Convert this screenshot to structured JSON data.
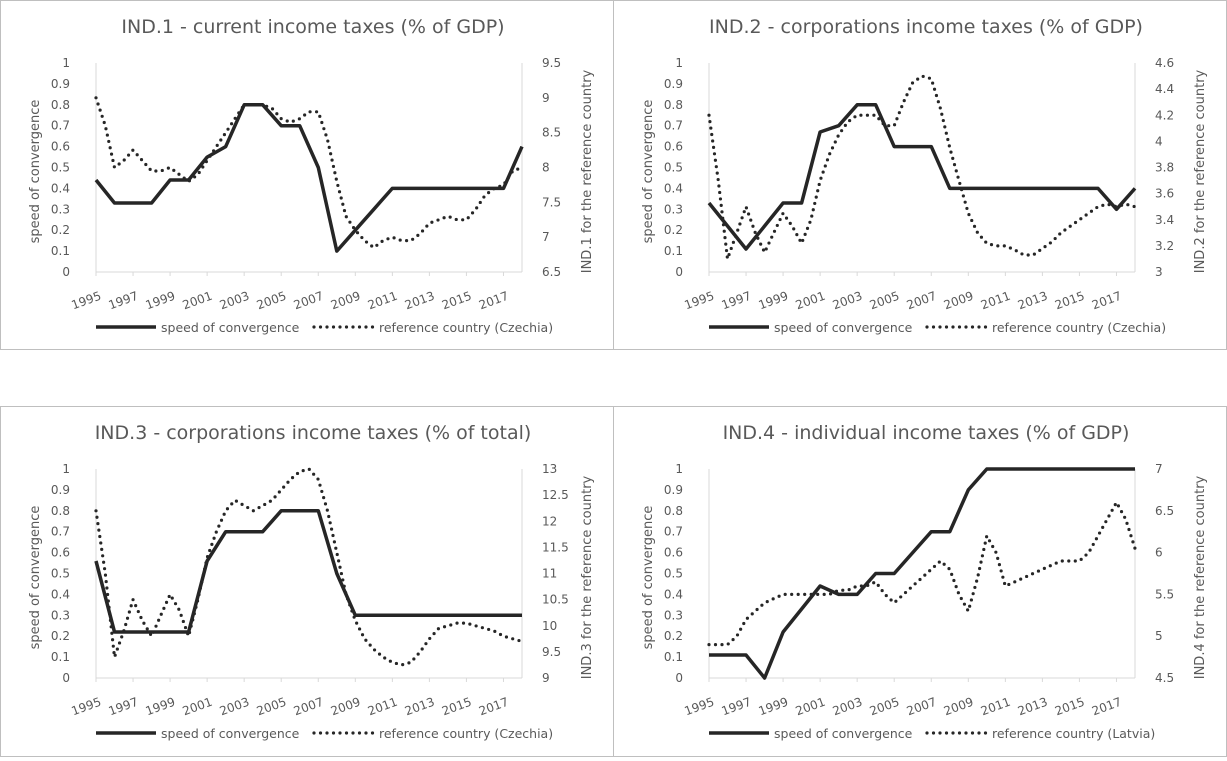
{
  "colors": {
    "series": "#262626",
    "text": "#595959",
    "title": "#595959",
    "grid": "#d9d9d9",
    "border": "#bfbfbf"
  },
  "chart_data": [
    {
      "type": "line",
      "title": "IND.1 - current income taxes (% of GDP)",
      "ylabel": "speed of convergence",
      "y2label": "IND.1 for the reference country",
      "x_ticks": [
        "1995",
        "1997",
        "1999",
        "2001",
        "2003",
        "2005",
        "2007",
        "2009",
        "2011",
        "2013",
        "2015",
        "2017"
      ],
      "x_range": [
        1995,
        2018
      ],
      "ylim": [
        0,
        1
      ],
      "y_ticks": [
        "0",
        "0.1",
        "0.2",
        "0.3",
        "0.4",
        "0.5",
        "0.6",
        "0.7",
        "0.8",
        "0.9",
        "1"
      ],
      "y2lim": [
        6.5,
        9.5
      ],
      "y2_ticks": [
        "6.5",
        "7",
        "7.5",
        "8",
        "8.5",
        "9",
        "9.5"
      ],
      "legend": [
        "speed of convergence",
        "reference country (Czechia)"
      ],
      "series": [
        {
          "name": "speed of convergence",
          "axis": "left",
          "style": "solid",
          "x": [
            1995,
            1996,
            1997,
            1998,
            1999,
            2000,
            2001,
            2002,
            2003,
            2004,
            2005,
            2006,
            2007,
            2008,
            2009,
            2010,
            2011,
            2012,
            2013,
            2014,
            2015,
            2016,
            2017,
            2018
          ],
          "values": [
            0.44,
            0.33,
            0.33,
            0.33,
            0.44,
            0.44,
            0.55,
            0.6,
            0.8,
            0.8,
            0.7,
            0.7,
            0.5,
            0.1,
            0.2,
            0.3,
            0.4,
            0.4,
            0.4,
            0.4,
            0.4,
            0.4,
            0.4,
            0.6
          ]
        },
        {
          "name": "reference country (Czechia)",
          "axis": "right",
          "style": "dotted",
          "x": [
            1995,
            1995.5,
            1996,
            1996.5,
            1997,
            1997.5,
            1998,
            1998.5,
            1999,
            1999.5,
            2000,
            2000.5,
            2001,
            2001.5,
            2002,
            2002.5,
            2003,
            2003.5,
            2004,
            2004.5,
            2005,
            2005.5,
            2006,
            2006.5,
            2007,
            2007.5,
            2008,
            2008.5,
            2009,
            2009.5,
            2010,
            2010.5,
            2011,
            2011.5,
            2012,
            2012.5,
            2013,
            2013.5,
            2014,
            2014.5,
            2015,
            2015.5,
            2016,
            2016.5,
            2017,
            2017.5,
            2018
          ],
          "values": [
            9.0,
            8.6,
            8.0,
            8.1,
            8.25,
            8.1,
            7.95,
            7.95,
            8.0,
            7.9,
            7.8,
            7.9,
            8.1,
            8.3,
            8.5,
            8.7,
            8.9,
            8.9,
            8.9,
            8.85,
            8.7,
            8.65,
            8.7,
            8.8,
            8.8,
            8.4,
            7.8,
            7.3,
            7.1,
            6.95,
            6.85,
            6.95,
            7.0,
            6.95,
            6.95,
            7.05,
            7.2,
            7.25,
            7.3,
            7.25,
            7.25,
            7.4,
            7.6,
            7.7,
            7.75,
            7.95,
            8.0
          ]
        }
      ]
    },
    {
      "type": "line",
      "title": "IND.2 - corporations income taxes (% of GDP)",
      "ylabel": "speed of convergence",
      "y2label": "IND.2 for the reference country",
      "x_ticks": [
        "1995",
        "1997",
        "1999",
        "2001",
        "2003",
        "2005",
        "2007",
        "2009",
        "2011",
        "2013",
        "2015",
        "2017"
      ],
      "x_range": [
        1995,
        2018
      ],
      "ylim": [
        0,
        1
      ],
      "y_ticks": [
        "0",
        "0.1",
        "0.2",
        "0.3",
        "0.4",
        "0.5",
        "0.6",
        "0.7",
        "0.8",
        "0.9",
        "1"
      ],
      "y2lim": [
        3,
        4.6
      ],
      "y2_ticks": [
        "3",
        "3.2",
        "3.4",
        "3.6",
        "3.8",
        "4",
        "4.2",
        "4.4",
        "4.6"
      ],
      "legend": [
        "speed of convergence",
        "reference country (Czechia)"
      ],
      "series": [
        {
          "name": "speed of convergence",
          "axis": "left",
          "style": "solid",
          "x": [
            1995,
            1996,
            1997,
            1998,
            1999,
            2000,
            2001,
            2002,
            2003,
            2004,
            2005,
            2006,
            2007,
            2008,
            2009,
            2010,
            2011,
            2012,
            2013,
            2014,
            2015,
            2016,
            2017,
            2018
          ],
          "values": [
            0.33,
            0.22,
            0.11,
            0.22,
            0.33,
            0.33,
            0.67,
            0.7,
            0.8,
            0.8,
            0.6,
            0.6,
            0.6,
            0.4,
            0.4,
            0.4,
            0.4,
            0.4,
            0.4,
            0.4,
            0.4,
            0.4,
            0.3,
            0.4
          ]
        },
        {
          "name": "reference country (Czechia)",
          "axis": "right",
          "style": "dotted",
          "x": [
            1995,
            1995.5,
            1996,
            1996.5,
            1997,
            1997.5,
            1998,
            1998.5,
            1999,
            1999.5,
            2000,
            2000.5,
            2001,
            2001.5,
            2002,
            2002.5,
            2003,
            2003.5,
            2004,
            2004.5,
            2005,
            2005.5,
            2006,
            2006.5,
            2007,
            2007.5,
            2008,
            2008.5,
            2009,
            2009.5,
            2010,
            2010.5,
            2011,
            2011.5,
            2012,
            2012.5,
            2013,
            2013.5,
            2014,
            2014.5,
            2015,
            2015.5,
            2016,
            2016.5,
            2017,
            2017.5,
            2018
          ],
          "values": [
            4.2,
            3.7,
            3.1,
            3.3,
            3.5,
            3.3,
            3.15,
            3.3,
            3.45,
            3.35,
            3.22,
            3.4,
            3.7,
            3.9,
            4.05,
            4.15,
            4.2,
            4.2,
            4.2,
            4.12,
            4.12,
            4.3,
            4.45,
            4.5,
            4.48,
            4.25,
            3.95,
            3.7,
            3.45,
            3.3,
            3.22,
            3.2,
            3.2,
            3.17,
            3.13,
            3.13,
            3.18,
            3.23,
            3.3,
            3.35,
            3.4,
            3.45,
            3.5,
            3.52,
            3.5,
            3.52,
            3.5
          ]
        }
      ]
    },
    {
      "type": "line",
      "title": "IND.3 - corporations income taxes (% of total)",
      "ylabel": "speed of convergence",
      "y2label": "IND.3 for the reference country",
      "x_ticks": [
        "1995",
        "1997",
        "1999",
        "2001",
        "2003",
        "2005",
        "2007",
        "2009",
        "2011",
        "2013",
        "2015",
        "2017"
      ],
      "x_range": [
        1995,
        2018
      ],
      "ylim": [
        0,
        1
      ],
      "y_ticks": [
        "0",
        "0.1",
        "0.2",
        "0.3",
        "0.4",
        "0.5",
        "0.6",
        "0.7",
        "0.8",
        "0.9",
        "1"
      ],
      "y2lim": [
        9,
        13
      ],
      "y2_ticks": [
        "9",
        "9.5",
        "10",
        "10.5",
        "11",
        "11.5",
        "12",
        "12.5",
        "13"
      ],
      "legend": [
        "speed of convergence",
        "reference country (Czechia)"
      ],
      "series": [
        {
          "name": "speed of convergence",
          "axis": "left",
          "style": "solid",
          "x": [
            1995,
            1996,
            1997,
            1998,
            1999,
            2000,
            2001,
            2002,
            2003,
            2004,
            2005,
            2006,
            2007,
            2008,
            2009,
            2010,
            2011,
            2012,
            2013,
            2014,
            2015,
            2016,
            2017,
            2018
          ],
          "values": [
            0.56,
            0.22,
            0.22,
            0.22,
            0.22,
            0.22,
            0.56,
            0.7,
            0.7,
            0.7,
            0.8,
            0.8,
            0.8,
            0.5,
            0.3,
            0.3,
            0.3,
            0.3,
            0.3,
            0.3,
            0.3,
            0.3,
            0.3,
            0.3
          ]
        },
        {
          "name": "reference country (Czechia)",
          "axis": "right",
          "style": "dotted",
          "x": [
            1995,
            1995.5,
            1996,
            1996.5,
            1997,
            1997.5,
            1998,
            1998.5,
            1999,
            1999.5,
            2000,
            2000.5,
            2001,
            2001.5,
            2002,
            2002.5,
            2003,
            2003.5,
            2004,
            2004.5,
            2005,
            2005.5,
            2006,
            2006.5,
            2007,
            2007.5,
            2008,
            2008.5,
            2009,
            2009.5,
            2010,
            2010.5,
            2011,
            2011.5,
            2012,
            2012.5,
            2013,
            2013.5,
            2014,
            2014.5,
            2015,
            2015.5,
            2016,
            2016.5,
            2017,
            2017.5,
            2018
          ],
          "values": [
            12.2,
            11.0,
            9.4,
            9.9,
            10.5,
            10.1,
            9.8,
            10.2,
            10.6,
            10.3,
            9.8,
            10.5,
            11.3,
            11.8,
            12.2,
            12.4,
            12.3,
            12.2,
            12.3,
            12.4,
            12.6,
            12.8,
            12.95,
            13.0,
            12.8,
            12.2,
            11.4,
            10.6,
            10.1,
            9.75,
            9.55,
            9.4,
            9.3,
            9.25,
            9.3,
            9.5,
            9.75,
            9.95,
            10.0,
            10.05,
            10.05,
            10.0,
            9.95,
            9.9,
            9.8,
            9.75,
            9.7
          ]
        }
      ]
    },
    {
      "type": "line",
      "title": "IND.4 - individual income taxes (% of GDP)",
      "ylabel": "speed of convergence",
      "y2label": "IND.4 for the reference country",
      "x_ticks": [
        "1995",
        "1997",
        "1999",
        "2001",
        "2003",
        "2005",
        "2007",
        "2009",
        "2011",
        "2013",
        "2015",
        "2017"
      ],
      "x_range": [
        1995,
        2018
      ],
      "ylim": [
        0,
        1
      ],
      "y_ticks": [
        "0",
        "0.1",
        "0.2",
        "0.3",
        "0.4",
        "0.5",
        "0.6",
        "0.7",
        "0.8",
        "0.9",
        "1"
      ],
      "y2lim": [
        4.5,
        7
      ],
      "y2_ticks": [
        "4.5",
        "5",
        "5.5",
        "6",
        "6.5",
        "7"
      ],
      "legend": [
        "speed of convergence",
        "reference country (Latvia)"
      ],
      "series": [
        {
          "name": "speed of convergence",
          "axis": "left",
          "style": "solid",
          "x": [
            1995,
            1996,
            1997,
            1998,
            1999,
            2000,
            2001,
            2002,
            2003,
            2004,
            2005,
            2006,
            2007,
            2008,
            2009,
            2010,
            2011,
            2012,
            2013,
            2014,
            2015,
            2016,
            2017,
            2018
          ],
          "values": [
            0.11,
            0.11,
            0.11,
            0.0,
            0.22,
            0.33,
            0.44,
            0.4,
            0.4,
            0.5,
            0.5,
            0.6,
            0.7,
            0.7,
            0.9,
            1.0,
            1.0,
            1.0,
            1.0,
            1.0,
            1.0,
            1.0,
            1.0,
            1.0
          ]
        },
        {
          "name": "reference country (Latvia)",
          "axis": "right",
          "style": "dotted",
          "x": [
            1995,
            1995.5,
            1996,
            1996.5,
            1997,
            1997.5,
            1998,
            1998.5,
            1999,
            1999.5,
            2000,
            2000.5,
            2001,
            2001.5,
            2002,
            2002.5,
            2003,
            2003.5,
            2004,
            2004.5,
            2005,
            2005.5,
            2006,
            2006.5,
            2007,
            2007.5,
            2008,
            2008.5,
            2009,
            2009.5,
            2010,
            2010.5,
            2011,
            2011.5,
            2012,
            2012.5,
            2013,
            2013.5,
            2014,
            2014.5,
            2015,
            2015.5,
            2016,
            2016.5,
            2017,
            2017.5,
            2018
          ],
          "values": [
            4.9,
            4.9,
            4.9,
            5.0,
            5.2,
            5.3,
            5.4,
            5.45,
            5.5,
            5.5,
            5.5,
            5.5,
            5.5,
            5.5,
            5.55,
            5.55,
            5.6,
            5.6,
            5.65,
            5.5,
            5.4,
            5.5,
            5.6,
            5.7,
            5.8,
            5.9,
            5.8,
            5.5,
            5.3,
            5.7,
            6.2,
            6.0,
            5.6,
            5.65,
            5.7,
            5.75,
            5.8,
            5.85,
            5.9,
            5.9,
            5.9,
            6.0,
            6.2,
            6.4,
            6.6,
            6.4,
            6.05
          ]
        }
      ]
    }
  ]
}
